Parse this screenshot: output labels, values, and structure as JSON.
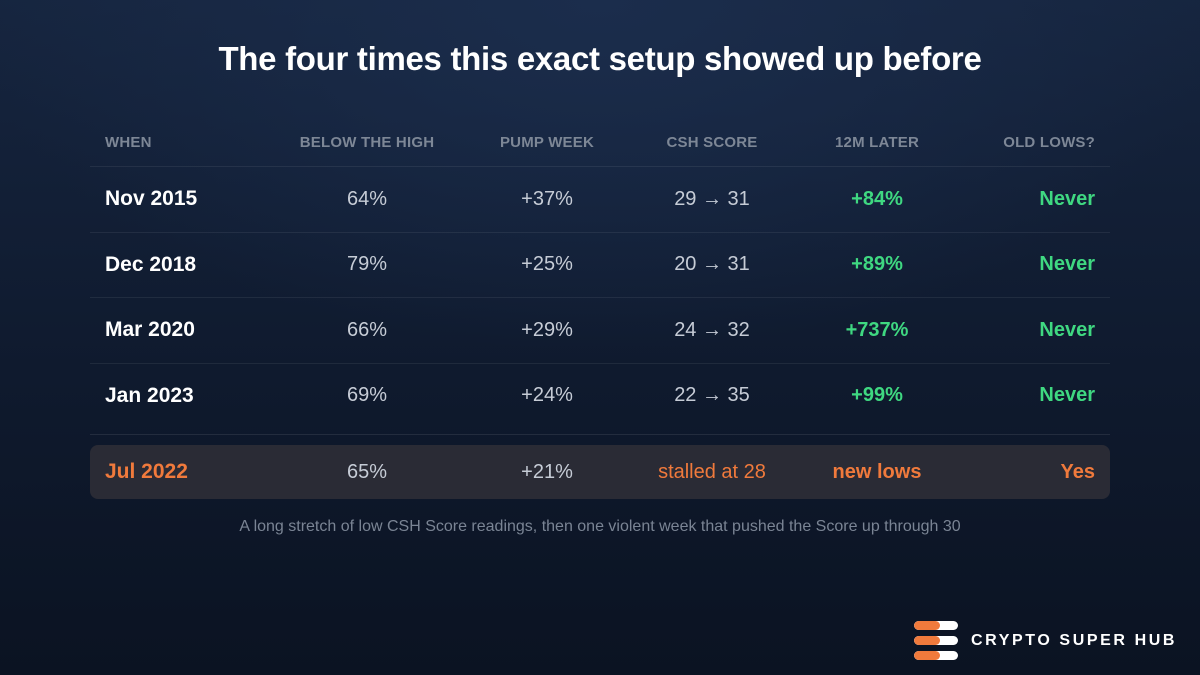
{
  "title": "The four times this exact setup showed up before",
  "table": {
    "headers": [
      "WHEN",
      "BELOW THE HIGH",
      "PUMP WEEK",
      "CSH SCORE",
      "12M LATER",
      "OLD LOWS?"
    ],
    "rows": [
      {
        "when": "Nov 2015",
        "below_high": "64%",
        "pump_week": "+37%",
        "csh_score": "29 → 31",
        "later_12m": "+84%",
        "old_lows": "Never"
      },
      {
        "when": "Dec 2018",
        "below_high": "79%",
        "pump_week": "+25%",
        "csh_score": "20 → 31",
        "later_12m": "+89%",
        "old_lows": "Never"
      },
      {
        "when": "Mar 2020",
        "below_high": "66%",
        "pump_week": "+29%",
        "csh_score": "24 → 32",
        "later_12m": "+737%",
        "old_lows": "Never"
      },
      {
        "when": "Jan 2023",
        "below_high": "69%",
        "pump_week": "+24%",
        "csh_score": "22 → 35",
        "later_12m": "+99%",
        "old_lows": "Never"
      }
    ],
    "highlight_row": {
      "when": "Jul 2022",
      "below_high": "65%",
      "pump_week": "+21%",
      "csh_score": "stalled at 28",
      "later_12m": "new lows",
      "old_lows": "Yes"
    }
  },
  "footnote": "A long stretch of low CSH Score readings, then one violent week that pushed the Score up through 30",
  "brand": {
    "name": "CRYPTO SUPER HUB",
    "logo_icon": "stacked-bars-logo-icon"
  },
  "colors": {
    "positive": "#3fd881",
    "accent": "#f07a3c",
    "header_text": "#7d8796",
    "highlight_bg": "#2a2b35"
  },
  "chart_data": {
    "type": "table",
    "title": "The four times this exact setup showed up before",
    "columns": [
      "WHEN",
      "BELOW THE HIGH",
      "PUMP WEEK",
      "CSH SCORE",
      "12M LATER",
      "OLD LOWS?"
    ],
    "rows": [
      [
        "Nov 2015",
        "64%",
        "+37%",
        "29 → 31",
        "+84%",
        "Never"
      ],
      [
        "Dec 2018",
        "79%",
        "+25%",
        "20 → 31",
        "+89%",
        "Never"
      ],
      [
        "Mar 2020",
        "66%",
        "+29%",
        "24 → 32",
        "+737%",
        "Never"
      ],
      [
        "Jan 2023",
        "69%",
        "+24%",
        "22 → 35",
        "+99%",
        "Never"
      ],
      [
        "Jul 2022",
        "65%",
        "+21%",
        "stalled at 28",
        "new lows",
        "Yes"
      ]
    ],
    "highlighted_row": "Jul 2022"
  }
}
